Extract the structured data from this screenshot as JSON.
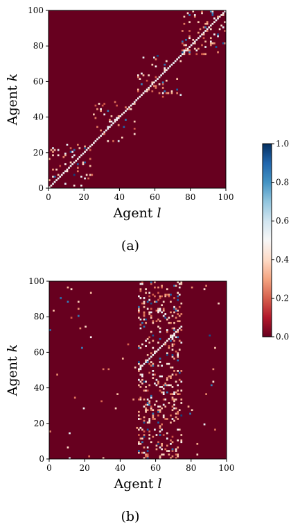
{
  "chart_data": [
    {
      "type": "heatmap",
      "panel_label": "(a)",
      "xlabel": "Agent l",
      "ylabel": "Agent k",
      "xlim": [
        0,
        100
      ],
      "ylim": [
        0,
        100
      ],
      "xticks": [
        "0",
        "20",
        "40",
        "60",
        "80",
        "100"
      ],
      "yticks": [
        "0",
        "20",
        "40",
        "60",
        "80",
        "100"
      ],
      "matrix_size": 100,
      "background_value": 0.0,
      "diagonal_value": 0.5,
      "blocks": [
        {
          "k_range": [
            0,
            25
          ],
          "l_range": [
            0,
            25
          ],
          "density": 0.09
        },
        {
          "k_range": [
            25,
            50
          ],
          "l_range": [
            25,
            50
          ],
          "density": 0.07
        },
        {
          "k_range": [
            50,
            75
          ],
          "l_range": [
            50,
            75
          ],
          "density": 0.07
        },
        {
          "k_range": [
            75,
            100
          ],
          "l_range": [
            75,
            100
          ],
          "density": 0.12
        }
      ]
    },
    {
      "type": "heatmap",
      "panel_label": "(b)",
      "xlabel": "Agent l",
      "ylabel": "Agent k",
      "xlim": [
        0,
        100
      ],
      "ylim": [
        0,
        100
      ],
      "xticks": [
        "0",
        "20",
        "40",
        "60",
        "80",
        "100"
      ],
      "yticks": [
        "0",
        "20",
        "40",
        "60",
        "80",
        "100"
      ],
      "matrix_size": 100,
      "background_value": 0.0,
      "diagonal_k_range": [
        50,
        75
      ],
      "dense_columns": [
        50,
        75
      ],
      "column_density": 0.17,
      "sparse_density": 0.006
    }
  ],
  "colorbar": {
    "colormap": "RdBu",
    "min": 0.0,
    "max": 1.0,
    "ticks": [
      "0.0",
      "0.2",
      "0.4",
      "0.6",
      "0.8",
      "1.0"
    ]
  },
  "labels": {
    "agent": "Agent",
    "l": "l",
    "k": "k"
  }
}
